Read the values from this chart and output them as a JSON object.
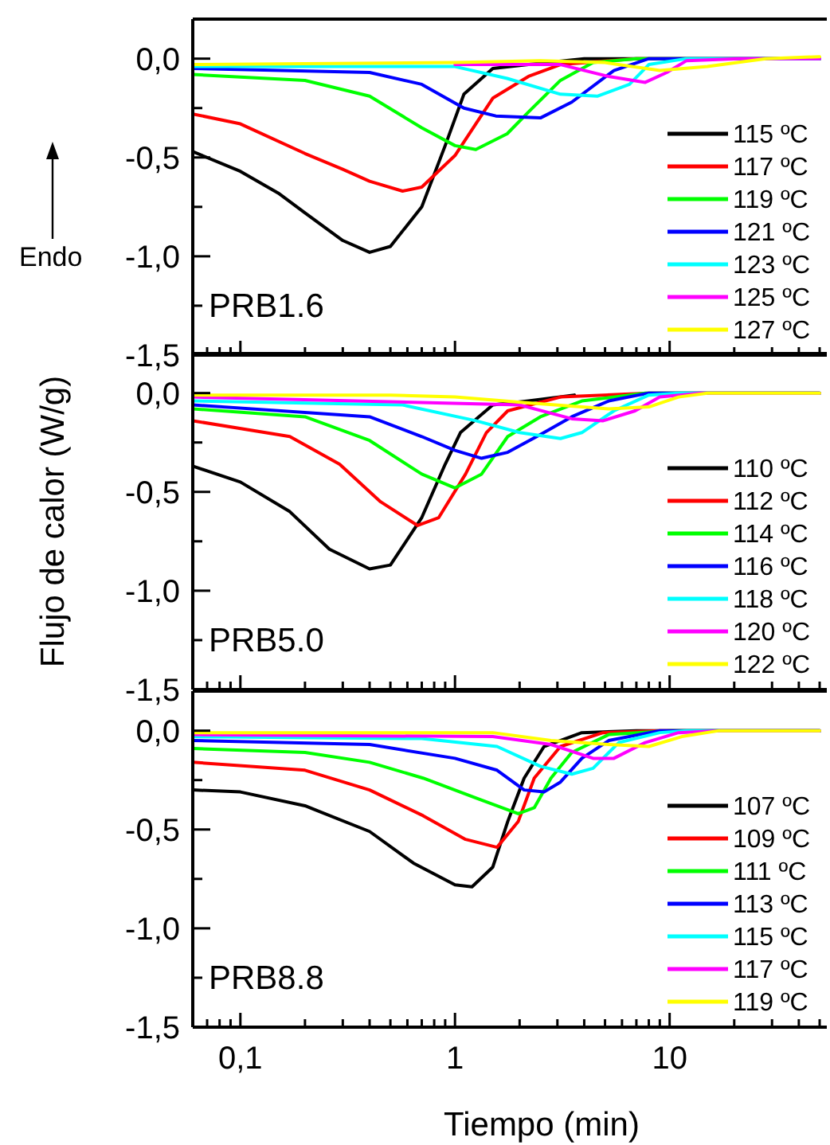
{
  "chart_data": [
    {
      "type": "line",
      "annotations": [
        "PRB1.6",
        "Endo"
      ],
      "log": "x",
      "xlim": [
        0.06,
        54
      ],
      "ylim": [
        -1.5,
        0.2
      ],
      "tick_labels": "y",
      "legend": "bottom right",
      "grid": false,
      "xticks": [
        {
          "value": 0.07,
          "label": null
        },
        {
          "value": 0.08,
          "label": null
        },
        {
          "value": 0.09,
          "label": null
        },
        {
          "value": 0.1,
          "label": null
        },
        {
          "value": 0.2,
          "label": null
        },
        {
          "value": 0.3,
          "label": null
        },
        {
          "value": 0.4,
          "label": null
        },
        {
          "value": 0.5,
          "label": null
        },
        {
          "value": 0.6,
          "label": null
        },
        {
          "value": 0.7,
          "label": null
        },
        {
          "value": 0.8,
          "label": null
        },
        {
          "value": 0.9,
          "label": null
        },
        {
          "value": 1,
          "label": null
        },
        {
          "value": 2,
          "label": null
        },
        {
          "value": 3,
          "label": null
        },
        {
          "value": 4,
          "label": null
        },
        {
          "value": 5,
          "label": null
        },
        {
          "value": 6,
          "label": null
        },
        {
          "value": 7,
          "label": null
        },
        {
          "value": 8,
          "label": null
        },
        {
          "value": 9,
          "label": null
        },
        {
          "value": 10,
          "label": null
        },
        {
          "value": 20,
          "label": null
        },
        {
          "value": 30,
          "label": null
        },
        {
          "value": 40,
          "label": null
        },
        {
          "value": 50,
          "label": null
        }
      ],
      "yticks": [
        {
          "value": -1.5,
          "label": "-1,5"
        },
        {
          "value": -1.25,
          "label": null
        },
        {
          "value": -1,
          "label": "-1,0"
        },
        {
          "value": -0.75,
          "label": null
        },
        {
          "value": -0.5,
          "label": "-0,5"
        },
        {
          "value": -0.25,
          "label": null
        },
        {
          "value": 0,
          "label": "0,0"
        }
      ],
      "series": [
        {
          "name": "115 ºC",
          "color": "#000000",
          "x": [
            0.06,
            0.1,
            0.15,
            0.2,
            0.3,
            0.4,
            0.5,
            0.7,
            0.9,
            1.1,
            1.5,
            2.2,
            4,
            10,
            50
          ],
          "values": [
            -0.47,
            -0.57,
            -0.68,
            -0.78,
            -0.92,
            -0.98,
            -0.95,
            -0.75,
            -0.44,
            -0.18,
            -0.05,
            -0.03,
            0,
            0,
            0
          ]
        },
        {
          "name": "117 ºC",
          "color": "#ff0000",
          "x": [
            0.06,
            0.1,
            0.2,
            0.3,
            0.4,
            0.57,
            0.7,
            1,
            1.25,
            1.5,
            2.2,
            3.1,
            7,
            50
          ],
          "values": [
            -0.28,
            -0.33,
            -0.48,
            -0.56,
            -0.62,
            -0.67,
            -0.65,
            -0.49,
            -0.33,
            -0.2,
            -0.09,
            -0.03,
            0,
            0
          ]
        },
        {
          "name": "119 ºC",
          "color": "#00ff00",
          "x": [
            0.06,
            0.2,
            0.4,
            0.7,
            1,
            1.25,
            1.75,
            2.2,
            3.1,
            4.4,
            7,
            50
          ],
          "values": [
            -0.08,
            -0.11,
            -0.19,
            -0.35,
            -0.44,
            -0.46,
            -0.38,
            -0.27,
            -0.11,
            -0.02,
            0,
            0
          ]
        },
        {
          "name": "121 ºC",
          "color": "#0000ff",
          "x": [
            0.06,
            0.4,
            0.7,
            1.1,
            1.55,
            2.5,
            3.5,
            5.5,
            8,
            50
          ],
          "values": [
            -0.05,
            -0.07,
            -0.13,
            -0.25,
            -0.29,
            -0.3,
            -0.22,
            -0.06,
            0,
            0
          ]
        },
        {
          "name": "123 ºC",
          "color": "#00ffff",
          "x": [
            0.06,
            1,
            1.75,
            3.1,
            4.6,
            6.5,
            8,
            12,
            50
          ],
          "values": [
            -0.04,
            -0.04,
            -0.1,
            -0.18,
            -0.19,
            -0.13,
            -0.03,
            0,
            0
          ]
        },
        {
          "name": "125 ºC",
          "color": "#ff00ff",
          "x": [
            1,
            3.1,
            5.2,
            7.7,
            9.7,
            12,
            21,
            50
          ],
          "values": [
            -0.03,
            -0.03,
            -0.09,
            -0.12,
            -0.07,
            -0.01,
            0,
            0
          ]
        },
        {
          "name": "127 ºC",
          "color": "#ffff00",
          "x": [
            0.06,
            1,
            2.5,
            5,
            9,
            15,
            28,
            50
          ],
          "values": [
            -0.03,
            -0.02,
            -0.01,
            -0.02,
            -0.06,
            -0.04,
            0,
            0.01
          ]
        }
      ]
    },
    {
      "type": "line",
      "annotations": [
        "PRB5.0"
      ],
      "ylabel": "Flujo de calor (W/g)",
      "log": "x",
      "xlim": [
        0.06,
        54
      ],
      "ylim": [
        -1.5,
        0.2
      ],
      "tick_labels": "y",
      "legend": "bottom right",
      "grid": false,
      "xticks": [
        {
          "value": 0.07,
          "label": null
        },
        {
          "value": 0.08,
          "label": null
        },
        {
          "value": 0.09,
          "label": null
        },
        {
          "value": 0.1,
          "label": null
        },
        {
          "value": 0.2,
          "label": null
        },
        {
          "value": 0.3,
          "label": null
        },
        {
          "value": 0.4,
          "label": null
        },
        {
          "value": 0.5,
          "label": null
        },
        {
          "value": 0.6,
          "label": null
        },
        {
          "value": 0.7,
          "label": null
        },
        {
          "value": 0.8,
          "label": null
        },
        {
          "value": 0.9,
          "label": null
        },
        {
          "value": 1,
          "label": null
        },
        {
          "value": 2,
          "label": null
        },
        {
          "value": 3,
          "label": null
        },
        {
          "value": 4,
          "label": null
        },
        {
          "value": 5,
          "label": null
        },
        {
          "value": 6,
          "label": null
        },
        {
          "value": 7,
          "label": null
        },
        {
          "value": 8,
          "label": null
        },
        {
          "value": 9,
          "label": null
        },
        {
          "value": 10,
          "label": null
        },
        {
          "value": 20,
          "label": null
        },
        {
          "value": 30,
          "label": null
        },
        {
          "value": 40,
          "label": null
        },
        {
          "value": 50,
          "label": null
        }
      ],
      "yticks": [
        {
          "value": -1.5,
          "label": "-1,5"
        },
        {
          "value": -1.25,
          "label": null
        },
        {
          "value": -1,
          "label": "-1,0"
        },
        {
          "value": -0.75,
          "label": null
        },
        {
          "value": -0.5,
          "label": "-0,5"
        },
        {
          "value": -0.25,
          "label": null
        },
        {
          "value": 0,
          "label": "0,0"
        }
      ],
      "series": [
        {
          "name": "110 ºC",
          "color": "#000000",
          "x": [
            0.06,
            0.1,
            0.17,
            0.26,
            0.4,
            0.5,
            0.7,
            0.9,
            1.06,
            1.5,
            2.2,
            3.6
          ],
          "values": [
            -0.37,
            -0.45,
            -0.6,
            -0.79,
            -0.89,
            -0.87,
            -0.63,
            -0.36,
            -0.2,
            -0.06,
            -0.04,
            -0.01
          ]
        },
        {
          "name": "112 ºC",
          "color": "#ff0000",
          "x": [
            0.06,
            0.17,
            0.29,
            0.45,
            0.67,
            0.84,
            1.12,
            1.4,
            1.76,
            3.1,
            8,
            50
          ],
          "values": [
            -0.14,
            -0.22,
            -0.36,
            -0.55,
            -0.67,
            -0.63,
            -0.41,
            -0.2,
            -0.09,
            -0.02,
            0,
            0
          ]
        },
        {
          "name": "114 ºC",
          "color": "#00ff00",
          "x": [
            0.06,
            0.2,
            0.4,
            0.7,
            1,
            1.33,
            1.76,
            2.5,
            3.9,
            7.7,
            50
          ],
          "values": [
            -0.08,
            -0.12,
            -0.24,
            -0.41,
            -0.48,
            -0.41,
            -0.22,
            -0.12,
            -0.04,
            0,
            0
          ]
        },
        {
          "name": "116 ºC",
          "color": "#0000ff",
          "x": [
            0.06,
            0.4,
            0.7,
            1,
            1.33,
            1.76,
            2.5,
            3.5,
            5.2,
            8,
            50
          ],
          "values": [
            -0.06,
            -0.12,
            -0.22,
            -0.29,
            -0.33,
            -0.3,
            -0.21,
            -0.12,
            -0.04,
            0,
            0
          ]
        },
        {
          "name": "118 ºC",
          "color": "#00ffff",
          "x": [
            0.06,
            0.57,
            1.25,
            2,
            3.1,
            3.9,
            5.5,
            8,
            11,
            50
          ],
          "values": [
            -0.04,
            -0.06,
            -0.14,
            -0.2,
            -0.23,
            -0.2,
            -0.09,
            -0.01,
            0,
            0
          ]
        },
        {
          "name": "120 ºC",
          "color": "#ff00ff",
          "x": [
            0.06,
            2,
            3.5,
            4.9,
            6.9,
            9,
            14,
            50
          ],
          "values": [
            -0.02,
            -0.06,
            -0.13,
            -0.14,
            -0.09,
            -0.02,
            0,
            0
          ]
        },
        {
          "name": "122 ºC",
          "color": "#ffff00",
          "x": [
            0.06,
            0.5,
            1,
            2.2,
            5.2,
            8,
            11,
            15,
            50
          ],
          "values": [
            -0.01,
            -0.01,
            -0.02,
            -0.05,
            -0.08,
            -0.07,
            -0.02,
            0,
            0
          ]
        }
      ]
    },
    {
      "type": "line",
      "annotations": [
        "PRB8.8"
      ],
      "xlabel": "Tiempo (min)",
      "log": "x",
      "xlim": [
        0.06,
        54
      ],
      "ylim": [
        -1.5,
        0.2
      ],
      "legend": "bottom right",
      "grid": false,
      "xticks": [
        {
          "value": 0.07,
          "label": null
        },
        {
          "value": 0.08,
          "label": null
        },
        {
          "value": 0.09,
          "label": null
        },
        {
          "value": 0.1,
          "label": "0,1"
        },
        {
          "value": 0.2,
          "label": null
        },
        {
          "value": 0.3,
          "label": null
        },
        {
          "value": 0.4,
          "label": null
        },
        {
          "value": 0.5,
          "label": null
        },
        {
          "value": 0.6,
          "label": null
        },
        {
          "value": 0.7,
          "label": null
        },
        {
          "value": 0.8,
          "label": null
        },
        {
          "value": 0.9,
          "label": null
        },
        1,
        {
          "value": 2,
          "label": null
        },
        {
          "value": 3,
          "label": null
        },
        {
          "value": 4,
          "label": null
        },
        {
          "value": 5,
          "label": null
        },
        {
          "value": 6,
          "label": null
        },
        {
          "value": 7,
          "label": null
        },
        {
          "value": 8,
          "label": null
        },
        {
          "value": 9,
          "label": null
        },
        10,
        {
          "value": 20,
          "label": null
        },
        {
          "value": 30,
          "label": null
        },
        {
          "value": 40,
          "label": null
        },
        {
          "value": 50,
          "label": null
        }
      ],
      "yticks": [
        {
          "value": -1.5,
          "label": "-1,5"
        },
        {
          "value": -1.25,
          "label": null
        },
        {
          "value": -1,
          "label": "-1,0"
        },
        {
          "value": -0.75,
          "label": null
        },
        {
          "value": -0.5,
          "label": "-0,5"
        },
        {
          "value": -0.25,
          "label": null
        },
        {
          "value": 0,
          "label": "0,0"
        }
      ],
      "series": [
        {
          "name": "107 ºC",
          "color": "#000000",
          "x": [
            0.06,
            0.1,
            0.2,
            0.4,
            0.64,
            1,
            1.2,
            1.5,
            1.76,
            2.1,
            2.6,
            3.9,
            7,
            50
          ],
          "values": [
            -0.3,
            -0.31,
            -0.38,
            -0.51,
            -0.67,
            -0.78,
            -0.79,
            -0.69,
            -0.46,
            -0.24,
            -0.08,
            -0.01,
            0,
            0
          ]
        },
        {
          "name": "109 ºC",
          "color": "#ff0000",
          "x": [
            0.06,
            0.2,
            0.4,
            0.71,
            1.12,
            1.57,
            1.97,
            2.34,
            3.1,
            4.9,
            9,
            50
          ],
          "values": [
            -0.16,
            -0.2,
            -0.3,
            -0.43,
            -0.55,
            -0.59,
            -0.46,
            -0.24,
            -0.08,
            -0.01,
            0,
            0
          ]
        },
        {
          "name": "111 ºC",
          "color": "#00ff00",
          "x": [
            0.06,
            0.2,
            0.4,
            0.71,
            1.25,
            1.97,
            2.34,
            2.8,
            3.5,
            5.2,
            10,
            50
          ],
          "values": [
            -0.09,
            -0.11,
            -0.16,
            -0.24,
            -0.34,
            -0.42,
            -0.39,
            -0.24,
            -0.11,
            -0.02,
            0,
            0
          ]
        },
        {
          "name": "113 ºC",
          "color": "#0000ff",
          "x": [
            0.06,
            0.4,
            1,
            1.57,
            2.1,
            2.6,
            3.1,
            3.9,
            5.2,
            9,
            50
          ],
          "values": [
            -0.05,
            -0.07,
            -0.14,
            -0.2,
            -0.3,
            -0.31,
            -0.26,
            -0.14,
            -0.05,
            0,
            0
          ]
        },
        {
          "name": "115 ºC",
          "color": "#00ffff",
          "x": [
            0.06,
            0.7,
            1.57,
            2.5,
            3.5,
            4.4,
            5.8,
            9,
            12,
            50
          ],
          "values": [
            -0.03,
            -0.04,
            -0.08,
            -0.18,
            -0.22,
            -0.19,
            -0.06,
            -0.01,
            0,
            0
          ]
        },
        {
          "name": "117 ºC",
          "color": "#ff00ff",
          "x": [
            0.06,
            1.5,
            2.8,
            4.4,
            5.5,
            7.7,
            11,
            17,
            50
          ],
          "values": [
            -0.02,
            -0.03,
            -0.07,
            -0.14,
            -0.14,
            -0.06,
            -0.01,
            0,
            0
          ]
        },
        {
          "name": "119 ºC",
          "color": "#ffff00",
          "x": [
            0.06,
            1.5,
            2.8,
            5.2,
            8,
            11.4,
            17,
            50
          ],
          "values": [
            -0.01,
            -0.01,
            -0.05,
            -0.07,
            -0.08,
            -0.03,
            0,
            0
          ]
        }
      ]
    }
  ]
}
